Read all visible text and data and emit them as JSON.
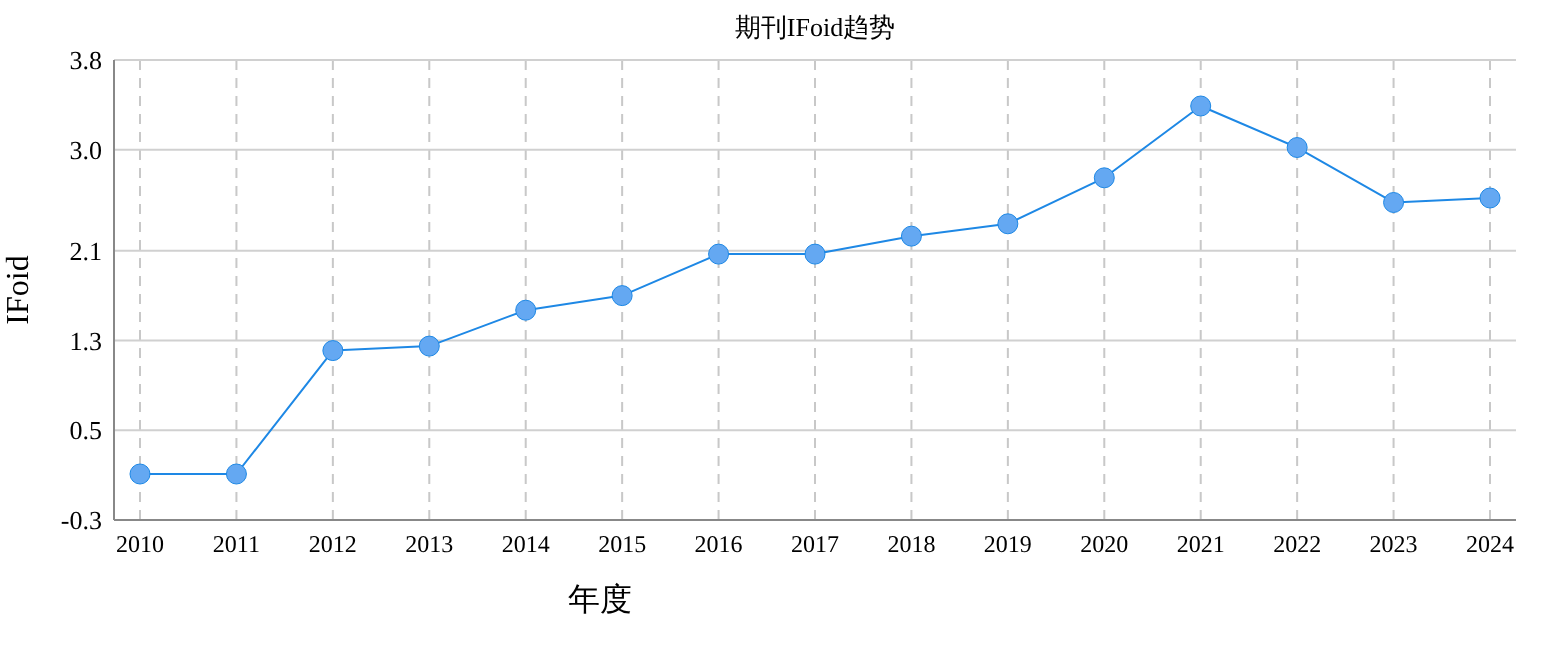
{
  "chart_data": {
    "type": "line",
    "title": "期刊IFoid趋势",
    "xlabel": "年度",
    "ylabel": "IFoid",
    "categories": [
      "2010",
      "2011",
      "2012",
      "2013",
      "2014",
      "2015",
      "2016",
      "2017",
      "2018",
      "2019",
      "2020",
      "2021",
      "2022",
      "2023",
      "2024"
    ],
    "series": [
      {
        "color": "#1e88e5",
        "values": [
          0.11,
          0.11,
          1.21,
          1.25,
          1.57,
          1.7,
          2.07,
          2.07,
          2.23,
          2.34,
          2.75,
          3.39,
          3.02,
          2.53,
          2.57
        ]
      }
    ],
    "ylim": [
      -0.3,
      3.8
    ],
    "yticks": [
      -0.3,
      0.5,
      1.3,
      2.1,
      {
        "value": 3,
        "label": "3.0"
      },
      3.8
    ],
    "grid": true,
    "marker": "circle",
    "line_style": "solid"
  }
}
